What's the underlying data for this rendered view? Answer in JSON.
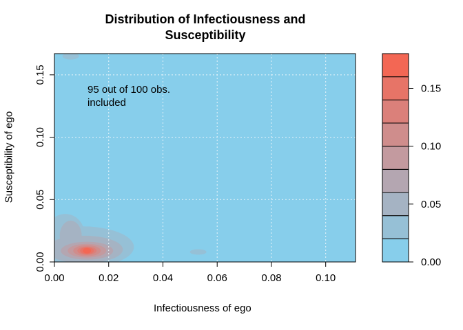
{
  "chart_data": {
    "type": "heatmap",
    "title_lines": [
      "Distribution of Infectiousness and",
      "Susceptibility"
    ],
    "xlabel": "Infectiousness of ego",
    "ylabel": "Susceptibility of ego",
    "xlim": [
      0.0,
      0.111
    ],
    "ylim": [
      0.0,
      0.167
    ],
    "x_ticks": [
      0.0,
      0.02,
      0.04,
      0.06,
      0.08,
      0.1
    ],
    "x_tick_labels": [
      "0.00",
      "0.02",
      "0.04",
      "0.06",
      "0.08",
      "0.10"
    ],
    "y_ticks": [
      0.0,
      0.05,
      0.1,
      0.15
    ],
    "y_tick_labels": [
      "0.00",
      "0.05",
      "0.10",
      "0.15"
    ],
    "grid": true,
    "annotation_lines": [
      "95 out of 100 obs.",
      "included"
    ],
    "density_peaks": [
      {
        "x": 0.012,
        "y": 0.009,
        "level": 0.18
      },
      {
        "x": 0.006,
        "y": 0.022,
        "level": 0.04
      },
      {
        "x": 0.053,
        "y": 0.008,
        "level": 0.015
      },
      {
        "x": 0.006,
        "y": 0.165,
        "level": 0.012
      }
    ],
    "colorbar": {
      "range": [
        0.0,
        0.18
      ],
      "levels": [
        0.0,
        0.02,
        0.04,
        0.06,
        0.08,
        0.1,
        0.12,
        0.14,
        0.16,
        0.18
      ],
      "colors": [
        "#87ceeb",
        "#96c0d6",
        "#a5b3c3",
        "#b4a6b1",
        "#c39a9f",
        "#cf8d8c",
        "#db807a",
        "#e77467",
        "#f36754"
      ],
      "ticks": [
        0.0,
        0.05,
        0.1,
        0.15
      ],
      "tick_labels": [
        "0.00",
        "0.05",
        "0.10",
        "0.15"
      ]
    }
  }
}
